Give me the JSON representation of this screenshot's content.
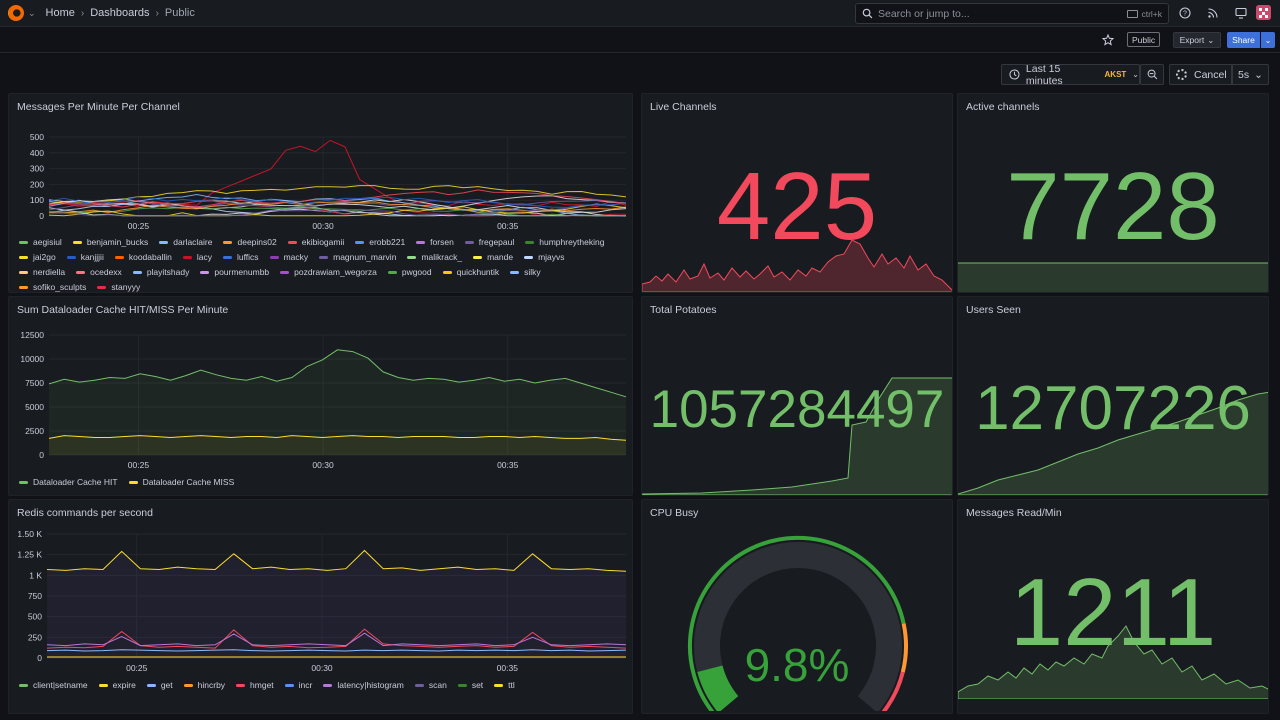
{
  "topbar": {
    "breadcrumbs": [
      "Home",
      "Dashboards",
      "Public"
    ],
    "search_placeholder": "Search or jump to...",
    "search_shortcut": "ctrl+k"
  },
  "toolbar": {
    "public_badge": "Public",
    "export_label": "Export",
    "share_label": "Share",
    "time_range": "Last 15 minutes",
    "timezone": "AKST",
    "cancel_label": "Cancel",
    "refresh_interval": "5s"
  },
  "colors": {
    "red": "#f2495c",
    "green": "#73bf69",
    "yellow": "#fade2a",
    "orange": "#ff9830"
  },
  "panels": {
    "messages": {
      "title": "Messages Per Minute Per Channel",
      "legend": [
        {
          "name": "aegisiul",
          "color": "#73bf69"
        },
        {
          "name": "benjamin_bucks",
          "color": "#fade2a"
        },
        {
          "name": "darlaclaire",
          "color": "#8ab8ff"
        },
        {
          "name": "deepins02",
          "color": "#ff9830"
        },
        {
          "name": "ekibiogamii",
          "color": "#f2495c"
        },
        {
          "name": "erobb221",
          "color": "#5794f2"
        },
        {
          "name": "forsen",
          "color": "#b877d9"
        },
        {
          "name": "fregepaul",
          "color": "#705da0"
        },
        {
          "name": "humphreytheking",
          "color": "#37872d"
        },
        {
          "name": "jai2go",
          "color": "#fade2a"
        },
        {
          "name": "kanjjjii",
          "color": "#1f60c4"
        },
        {
          "name": "koodaballin",
          "color": "#fa6400"
        },
        {
          "name": "lacy",
          "color": "#c4162a"
        },
        {
          "name": "luffics",
          "color": "#3274d9"
        },
        {
          "name": "macky",
          "color": "#8f3bb8"
        },
        {
          "name": "magnum_marvin",
          "color": "#705da0"
        },
        {
          "name": "malikrack_",
          "color": "#96d98d"
        },
        {
          "name": "mande",
          "color": "#ffee52"
        },
        {
          "name": "mjayvs",
          "color": "#c0d8ff"
        },
        {
          "name": "nerdiella",
          "color": "#ffcb7d"
        },
        {
          "name": "ocedexx",
          "color": "#ff7383"
        },
        {
          "name": "playitshady",
          "color": "#8ab8ff"
        },
        {
          "name": "pourmenumbb",
          "color": "#ca95e5"
        },
        {
          "name": "pozdrawiam_wegorza",
          "color": "#a352cc"
        },
        {
          "name": "pwgood",
          "color": "#56a64b"
        },
        {
          "name": "quickhuntik",
          "color": "#f2cc0c"
        },
        {
          "name": "silky",
          "color": "#8ab8ff"
        },
        {
          "name": "sofiko_sculpts",
          "color": "#ff9830"
        },
        {
          "name": "stanyyy",
          "color": "#e02f44"
        }
      ]
    },
    "cache": {
      "title": "Sum Dataloader Cache HIT/MISS Per Minute",
      "legend": [
        {
          "name": "Dataloader Cache HIT",
          "color": "#73bf69"
        },
        {
          "name": "Dataloader Cache MISS",
          "color": "#fade2a"
        }
      ]
    },
    "redis": {
      "title": "Redis commands per second",
      "legend": [
        {
          "name": "client|setname",
          "color": "#73bf69"
        },
        {
          "name": "expire",
          "color": "#fade2a"
        },
        {
          "name": "get",
          "color": "#8ab8ff"
        },
        {
          "name": "hincrby",
          "color": "#ff9830"
        },
        {
          "name": "hmget",
          "color": "#f2495c"
        },
        {
          "name": "incr",
          "color": "#5794f2"
        },
        {
          "name": "latency|histogram",
          "color": "#b877d9"
        },
        {
          "name": "scan",
          "color": "#705da0"
        },
        {
          "name": "set",
          "color": "#37872d"
        },
        {
          "name": "ttl",
          "color": "#fade2a"
        }
      ]
    },
    "live_channels": {
      "title": "Live Channels",
      "value": "425"
    },
    "active_channels": {
      "title": "Active channels",
      "value": "7728"
    },
    "total_potatoes": {
      "title": "Total Potatoes",
      "value": "1057284497"
    },
    "users_seen": {
      "title": "Users Seen",
      "value": "12707226"
    },
    "cpu_busy": {
      "title": "CPU Busy",
      "value": "9.8%",
      "percent": 9.8
    },
    "messages_read": {
      "title": "Messages Read/Min",
      "value": "1211"
    }
  },
  "chart_data": [
    {
      "type": "line",
      "title": "Messages Per Minute Per Channel",
      "x_ticks": [
        "00:25",
        "00:30",
        "00:35"
      ],
      "y_ticks": [
        "0",
        "100",
        "200",
        "300",
        "400",
        "500"
      ],
      "ylim": [
        0,
        520
      ]
    },
    {
      "type": "area",
      "title": "Sum Dataloader Cache HIT/MISS Per Minute",
      "x_ticks": [
        "00:25",
        "00:30",
        "00:35"
      ],
      "y_ticks": [
        "0",
        "2500",
        "5000",
        "7500",
        "10000",
        "12500"
      ],
      "ylim": [
        0,
        13000
      ],
      "series": [
        {
          "name": "Dataloader Cache HIT",
          "values": [
            7700,
            8200,
            7900,
            8100,
            8400,
            8300,
            8800,
            8500,
            8100,
            8600,
            9200,
            8700,
            8300,
            8100,
            8500,
            8000,
            8400,
            9600,
            10300,
            11400,
            11200,
            10500,
            9000,
            8400,
            8100,
            8300,
            8200,
            7900,
            8100,
            8400,
            8000,
            8200,
            7800,
            8100,
            8300,
            7800,
            7300,
            6800,
            6300
          ]
        },
        {
          "name": "Dataloader Cache MISS",
          "values": [
            1800,
            2100,
            2000,
            1900,
            1900,
            2000,
            2100,
            2000,
            1900,
            2000,
            2100,
            2000,
            1900,
            2000,
            2000,
            1900,
            2100,
            2000,
            1900,
            2000,
            2100,
            2000,
            2000,
            1900,
            2000,
            2000,
            2000,
            1900,
            1900,
            2000,
            2000,
            1900,
            2000,
            1900,
            1800,
            1800,
            1900,
            1700,
            1600
          ]
        }
      ]
    },
    {
      "type": "line",
      "title": "Redis commands per second",
      "x_ticks": [
        "00:25",
        "00:30",
        "00:35"
      ],
      "y_ticks": [
        "0",
        "250",
        "500",
        "750",
        "1 K",
        "1.25 K",
        "1.50 K"
      ],
      "ylim": [
        0,
        1500
      ],
      "series": [
        {
          "name": "client|setname",
          "values": [
            1070,
            1060,
            1080,
            1070,
            1290,
            1080,
            1070,
            1100,
            1080,
            1070,
            1260,
            1080,
            1100,
            1070,
            1080,
            1060,
            1080,
            1300,
            1080,
            1090,
            1060,
            1080,
            1100,
            1070,
            1080,
            1060,
            1260,
            1080,
            1070,
            1080,
            1060,
            1050
          ]
        },
        {
          "name": "hmget",
          "values": [
            120,
            130,
            125,
            140,
            320,
            150,
            130,
            140,
            130,
            120,
            340,
            150,
            130,
            140,
            125,
            130,
            140,
            350,
            170,
            150,
            140,
            130,
            140,
            150,
            130,
            140,
            310,
            150,
            130,
            140,
            130,
            120
          ]
        },
        {
          "name": "latency|histogram",
          "values": [
            160,
            150,
            170,
            160,
            260,
            150,
            160,
            170,
            150,
            160,
            290,
            160,
            150,
            160,
            170,
            160,
            150,
            300,
            150,
            170,
            160,
            150,
            160,
            170,
            150,
            160,
            250,
            160,
            150,
            160,
            170,
            160
          ]
        },
        {
          "name": "get",
          "values": [
            90,
            95,
            85,
            90,
            100,
            95,
            90,
            85,
            90,
            95,
            100,
            90,
            85,
            90,
            95,
            90,
            85,
            95,
            90,
            95,
            90,
            85,
            95,
            90,
            95,
            90,
            100,
            90,
            95,
            85,
            90,
            95
          ]
        }
      ]
    }
  ]
}
